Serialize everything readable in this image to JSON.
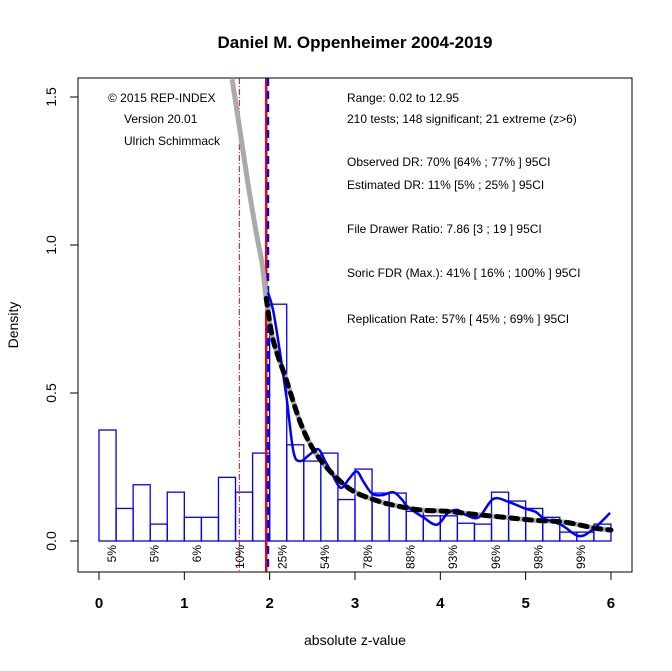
{
  "chart_data": {
    "type": "bar",
    "title": "Daniel M. Oppenheimer 2004-2019",
    "xlabel": "absolute z-value",
    "ylabel": "Density",
    "xlim": [
      0,
      6
    ],
    "ylim": [
      0,
      1.5
    ],
    "x_ticks": [
      0,
      1,
      2,
      3,
      4,
      5,
      6
    ],
    "x_tick_labels": [
      "0",
      "1",
      "2",
      "3",
      "4",
      "5",
      "6"
    ],
    "y_ticks": [
      0,
      0.5,
      1.0,
      1.5
    ],
    "y_tick_labels": [
      "0.0",
      "0.5",
      "1.0",
      "1.5"
    ],
    "grid": false,
    "histogram": {
      "bin_width": 0.2,
      "bin_starts": [
        0.0,
        0.2,
        0.4,
        0.6,
        0.8,
        1.0,
        1.2,
        1.4,
        1.6,
        1.8,
        2.0,
        2.2,
        2.4,
        2.6,
        2.8,
        3.0,
        3.2,
        3.4,
        3.6,
        3.8,
        4.0,
        4.2,
        4.4,
        4.6,
        4.8,
        5.0,
        5.2,
        5.4,
        5.6,
        5.8
      ],
      "values": [
        0.375,
        0.11,
        0.19,
        0.057,
        0.165,
        0.08,
        0.08,
        0.215,
        0.165,
        0.297,
        0.8,
        0.325,
        0.27,
        0.297,
        0.14,
        0.243,
        0.162,
        0.162,
        0.1,
        0.085,
        0.085,
        0.06,
        0.057,
        0.165,
        0.135,
        0.11,
        0.08,
        0.03,
        0.03,
        0.057
      ],
      "color": "#0000ff"
    },
    "series": [
      {
        "name": "kernel-density",
        "type": "line",
        "color": "#0000ff",
        "x": [
          1.98,
          2.04,
          2.12,
          2.2,
          2.28,
          2.36,
          2.46,
          2.57,
          2.65,
          2.71,
          2.83,
          2.93,
          3.02,
          3.1,
          3.2,
          3.32,
          3.45,
          3.55,
          3.62,
          3.8,
          3.96,
          4.09,
          4.2,
          4.3,
          4.45,
          4.62,
          4.8,
          4.99,
          5.12,
          5.22,
          5.42,
          5.62,
          5.78,
          5.99
        ],
        "y": [
          0.84,
          0.78,
          0.64,
          0.48,
          0.3,
          0.27,
          0.29,
          0.31,
          0.27,
          0.24,
          0.18,
          0.21,
          0.235,
          0.2,
          0.16,
          0.155,
          0.165,
          0.14,
          0.115,
          0.08,
          0.055,
          0.095,
          0.105,
          0.088,
          0.08,
          0.142,
          0.132,
          0.11,
          0.098,
          0.075,
          0.054,
          0.017,
          0.037,
          0.095
        ]
      },
      {
        "name": "model-fit-full",
        "type": "line",
        "color": "#aaaaaa",
        "x": [
          1.56,
          1.65,
          1.75,
          1.85,
          1.91,
          1.96,
          2.04,
          2.2,
          2.36,
          2.51,
          2.71,
          2.97,
          3.27,
          3.5,
          3.76,
          4.09,
          4.4,
          4.75,
          5.1,
          5.45,
          5.8,
          6.0
        ],
        "y": [
          1.56,
          1.39,
          1.2,
          1.03,
          0.94,
          0.82,
          0.68,
          0.54,
          0.4,
          0.31,
          0.235,
          0.17,
          0.135,
          0.118,
          0.105,
          0.1,
          0.09,
          0.08,
          0.07,
          0.064,
          0.044,
          0.037
        ]
      },
      {
        "name": "model-fit-significant",
        "type": "line",
        "color": "#000000",
        "x": [
          1.96,
          2.04,
          2.2,
          2.36,
          2.51,
          2.71,
          2.97,
          3.27,
          3.5,
          3.76,
          4.09,
          4.4,
          4.75,
          5.1,
          5.45,
          5.8,
          6.0
        ],
        "y": [
          0.82,
          0.68,
          0.54,
          0.4,
          0.31,
          0.235,
          0.17,
          0.135,
          0.118,
          0.105,
          0.1,
          0.09,
          0.08,
          0.07,
          0.064,
          0.044,
          0.037
        ]
      }
    ],
    "vlines": [
      {
        "name": "z-1.65-criterion",
        "x": 1.645,
        "color": "#ff0000",
        "style": "dashdot"
      },
      {
        "name": "z-1.96-criterion",
        "x": 1.96,
        "color": "#ff0000",
        "style": "solid"
      },
      {
        "name": "z-1.96-blue-dashed",
        "x": 1.98,
        "color": "#0000ff",
        "style": "dashed"
      }
    ],
    "power_labels": {
      "x": [
        0.15,
        0.65,
        1.15,
        1.65,
        2.15,
        2.65,
        3.15,
        3.65,
        4.15,
        4.65,
        5.15,
        5.65
      ],
      "labels": [
        "5%",
        "5%",
        "6%",
        "10%",
        "25%",
        "54%",
        "78%",
        "88%",
        "93%",
        "96%",
        "98%",
        "99%"
      ]
    },
    "annotations_left": [
      "© 2015 REP-INDEX",
      "Version 20.01",
      "Ulrich Schimmack"
    ],
    "annotations_right": [
      "Range: 0.02 to 12.95",
      "210 tests; 148 significant; 21 extreme (z>6)",
      "",
      "Observed DR: 70% [64% ; 77% ] 95CI",
      "Estimated DR: 11% [5% ; 25% ] 95CI",
      "",
      "File Drawer Ratio: 7.86 [3 ; 19 ] 95CI",
      "",
      "Soric FDR (Max.): 41% [ 16% ; 100% ] 95CI",
      "",
      "Replication Rate: 57% [ 45% ; 69% ] 95CI"
    ],
    "legend": "none"
  }
}
